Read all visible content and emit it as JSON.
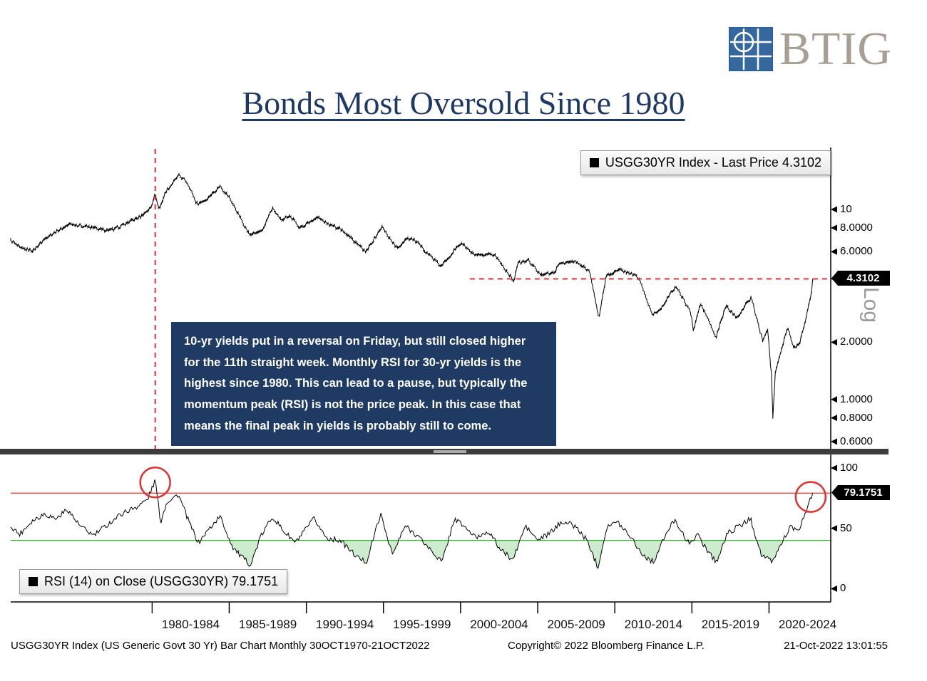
{
  "logo": {
    "text": "BTIG",
    "square_color": "#2d5f9c",
    "text_color": "#a6a094"
  },
  "title": {
    "text": "Bonds Most Oversold Since 1980",
    "color": "#1f3966"
  },
  "annotation": {
    "text": "10-yr yields put in a reversal on Friday, but still closed higher for the 11th straight week. Monthly RSI for 30-yr yields is the highest since 1980. This can lead to a pause, but typically the momentum peak (RSI) is not the price peak. In this case that means the final peak in yields is probably still to come.",
    "bg": "#1f3a63",
    "text_color": "#ffffff"
  },
  "price_panel": {
    "legend": "USGG30YR Index - Last Price 4.3102",
    "last_price_label": "4.3102",
    "log_label": "Log"
  },
  "rsi_panel": {
    "legend": "RSI (14)  on Close (USGG30YR) 79.1751",
    "last_value_label": "79.1751"
  },
  "footer": {
    "left": "USGG30YR Index (US Generic Govt 30 Yr) Bar Chart  Monthly 30OCT1970-21OCT2022",
    "center": "Copyright© 2022 Bloomberg Finance L.P.",
    "right": "21-Oct-2022 13:01:55"
  },
  "colors": {
    "accent_red": "#e03131",
    "green_line": "#2ebd2e",
    "fill_green": "#cdeccd",
    "series_black": "#000000"
  },
  "chart_data": [
    {
      "type": "line",
      "title": "USGG30YR Index - Last Price 4.3102",
      "xlabel": "",
      "ylabel": "",
      "yscale": "log",
      "xlim": [
        1970.83,
        2024.0
      ],
      "ylim": [
        0.55,
        21.2
      ],
      "last_price": 4.3102,
      "yticks": [
        {
          "value": 10,
          "label": "10"
        },
        {
          "value": 8,
          "label": "8.0000"
        },
        {
          "value": 6,
          "label": "6.0000"
        },
        {
          "value": 2,
          "label": "2.0000"
        },
        {
          "value": 1,
          "label": "1.0000"
        },
        {
          "value": 0.8,
          "label": "0.8000"
        },
        {
          "value": 0.6,
          "label": "0.6000"
        }
      ],
      "series": [
        {
          "name": "USGG30YR Index Last Price",
          "color": "#000000",
          "anchors_x": [
            1970.83,
            1971.5,
            1972.3,
            1973.2,
            1974.7,
            1975.5,
            1976.8,
            1977.5,
            1978.5,
            1979.2,
            1979.95,
            1980.17,
            1980.45,
            1980.9,
            1981.75,
            1982.3,
            1982.9,
            1983.5,
            1984.4,
            1985.0,
            1986.3,
            1987.1,
            1987.8,
            1988.3,
            1988.9,
            1989.6,
            1990.7,
            1991.5,
            1992.3,
            1993.85,
            1994.9,
            1995.9,
            1996.5,
            1997.0,
            1998.75,
            1999.2,
            2000.05,
            2000.8,
            2001.4,
            2002.2,
            2003.45,
            2003.7,
            2004.4,
            2005.1,
            2006.0,
            2006.5,
            2007.45,
            2008.4,
            2008.95,
            2009.45,
            2010.3,
            2011.1,
            2011.6,
            2012.4,
            2012.9,
            2013.95,
            2014.9,
            2015.1,
            2015.55,
            2016.1,
            2016.55,
            2017.2,
            2017.9,
            2018.85,
            2019.6,
            2019.9,
            2020.17,
            2020.25,
            2020.4,
            2021.2,
            2021.6,
            2022.0,
            2022.3,
            2022.55,
            2022.7,
            2022.83
          ],
          "anchors_y": [
            6.9,
            6.2,
            6.1,
            7.2,
            8.4,
            8.2,
            7.8,
            7.8,
            8.6,
            9.1,
            10.3,
            12.2,
            10.0,
            12.5,
            15.1,
            13.8,
            10.7,
            11.3,
            13.3,
            11.6,
            7.4,
            7.6,
            10.2,
            8.8,
            9.3,
            8.0,
            9.1,
            8.3,
            7.9,
            5.95,
            8.1,
            6.2,
            7.1,
            6.9,
            5.0,
            5.6,
            6.7,
            5.8,
            5.7,
            5.8,
            4.2,
            5.2,
            5.4,
            4.6,
            4.6,
            5.25,
            5.3,
            4.7,
            2.65,
            4.5,
            4.8,
            4.6,
            4.3,
            2.8,
            2.95,
            3.95,
            2.9,
            2.3,
            3.2,
            2.6,
            2.1,
            3.1,
            2.7,
            3.45,
            2.0,
            2.4,
            1.3,
            0.8,
            1.4,
            2.4,
            1.85,
            2.0,
            2.5,
            3.1,
            3.4,
            4.3102
          ]
        }
      ],
      "annotations": {
        "vline_year": 1980.2,
        "hline_value": 4.3102,
        "hline_x_start": 2000.6,
        "color": "#e03131",
        "style": "dashed"
      }
    },
    {
      "type": "line",
      "title": "RSI (14) on Close (USGG30YR) 79.1751",
      "xlabel": "",
      "ylabel": "",
      "xlim": [
        1970.83,
        2024.0
      ],
      "ylim": [
        -11,
        110
      ],
      "last_value": 79.1751,
      "yticks": [
        {
          "value": 100,
          "label": "100"
        },
        {
          "value": 50,
          "label": "50"
        },
        {
          "value": 0,
          "label": "0"
        }
      ],
      "reference_lines": [
        {
          "value": 79.1751,
          "color": "#f03030",
          "name": "current-rsi-level"
        },
        {
          "value": 40,
          "color": "#2ebd2e",
          "name": "support-level"
        }
      ],
      "fill_below": {
        "threshold": 40,
        "color": "#cdeccd"
      },
      "circles": [
        {
          "x": 1980.2,
          "y": 88,
          "label": "1980 RSI peak"
        },
        {
          "x": 2022.7,
          "y": 76,
          "label": "2022 RSI peak"
        }
      ],
      "series": [
        {
          "name": "RSI (14) on Close",
          "color": "#000000",
          "anchors_x": [
            1970.83,
            1971.4,
            1972.2,
            1973.0,
            1973.8,
            1974.5,
            1975.3,
            1976.2,
            1977.0,
            1978.0,
            1979.0,
            1979.7,
            1980.2,
            1980.55,
            1980.95,
            1981.7,
            1982.4,
            1983.0,
            1983.6,
            1984.4,
            1985.2,
            1985.8,
            1986.4,
            1987.0,
            1987.8,
            1988.5,
            1989.3,
            1990.5,
            1991.3,
            1992.2,
            1993.3,
            1993.9,
            1994.8,
            1995.6,
            1996.4,
            1997.2,
            1998.2,
            1998.8,
            1999.6,
            2000.2,
            2001.0,
            2001.8,
            2002.6,
            2003.4,
            2004.2,
            2005.0,
            2005.8,
            2006.6,
            2007.4,
            2008.2,
            2008.9,
            2009.5,
            2010.2,
            2011.0,
            2011.8,
            2012.5,
            2013.2,
            2013.9,
            2014.7,
            2015.4,
            2016.1,
            2016.6,
            2017.3,
            2018.1,
            2018.8,
            2019.5,
            2020.2,
            2020.9,
            2021.4,
            2021.9,
            2022.2,
            2022.5,
            2022.83
          ],
          "anchors_y": [
            52,
            45,
            56,
            62,
            58,
            66,
            52,
            44,
            52,
            62,
            68,
            74,
            90,
            55,
            72,
            78,
            55,
            38,
            48,
            60,
            35,
            26,
            20,
            42,
            60,
            48,
            38,
            58,
            42,
            40,
            26,
            22,
            62,
            28,
            52,
            44,
            30,
            22,
            58,
            52,
            42,
            48,
            32,
            24,
            52,
            40,
            46,
            56,
            52,
            40,
            18,
            52,
            55,
            44,
            28,
            22,
            42,
            58,
            38,
            44,
            30,
            22,
            46,
            52,
            58,
            28,
            22,
            40,
            52,
            46,
            58,
            68,
            79.1751
          ]
        }
      ],
      "xticks": [
        {
          "start": 1980,
          "end": 1984,
          "label": "1980-1984"
        },
        {
          "start": 1985,
          "end": 1989,
          "label": "1985-1989"
        },
        {
          "start": 1990,
          "end": 1994,
          "label": "1990-1994"
        },
        {
          "start": 1995,
          "end": 1999,
          "label": "1995-1999"
        },
        {
          "start": 2000,
          "end": 2004,
          "label": "2000-2004"
        },
        {
          "start": 2005,
          "end": 2009,
          "label": "2005-2009"
        },
        {
          "start": 2010,
          "end": 2014,
          "label": "2010-2014"
        },
        {
          "start": 2015,
          "end": 2019,
          "label": "2015-2019"
        },
        {
          "start": 2020,
          "end": 2024,
          "label": "2020-2024"
        }
      ]
    }
  ]
}
